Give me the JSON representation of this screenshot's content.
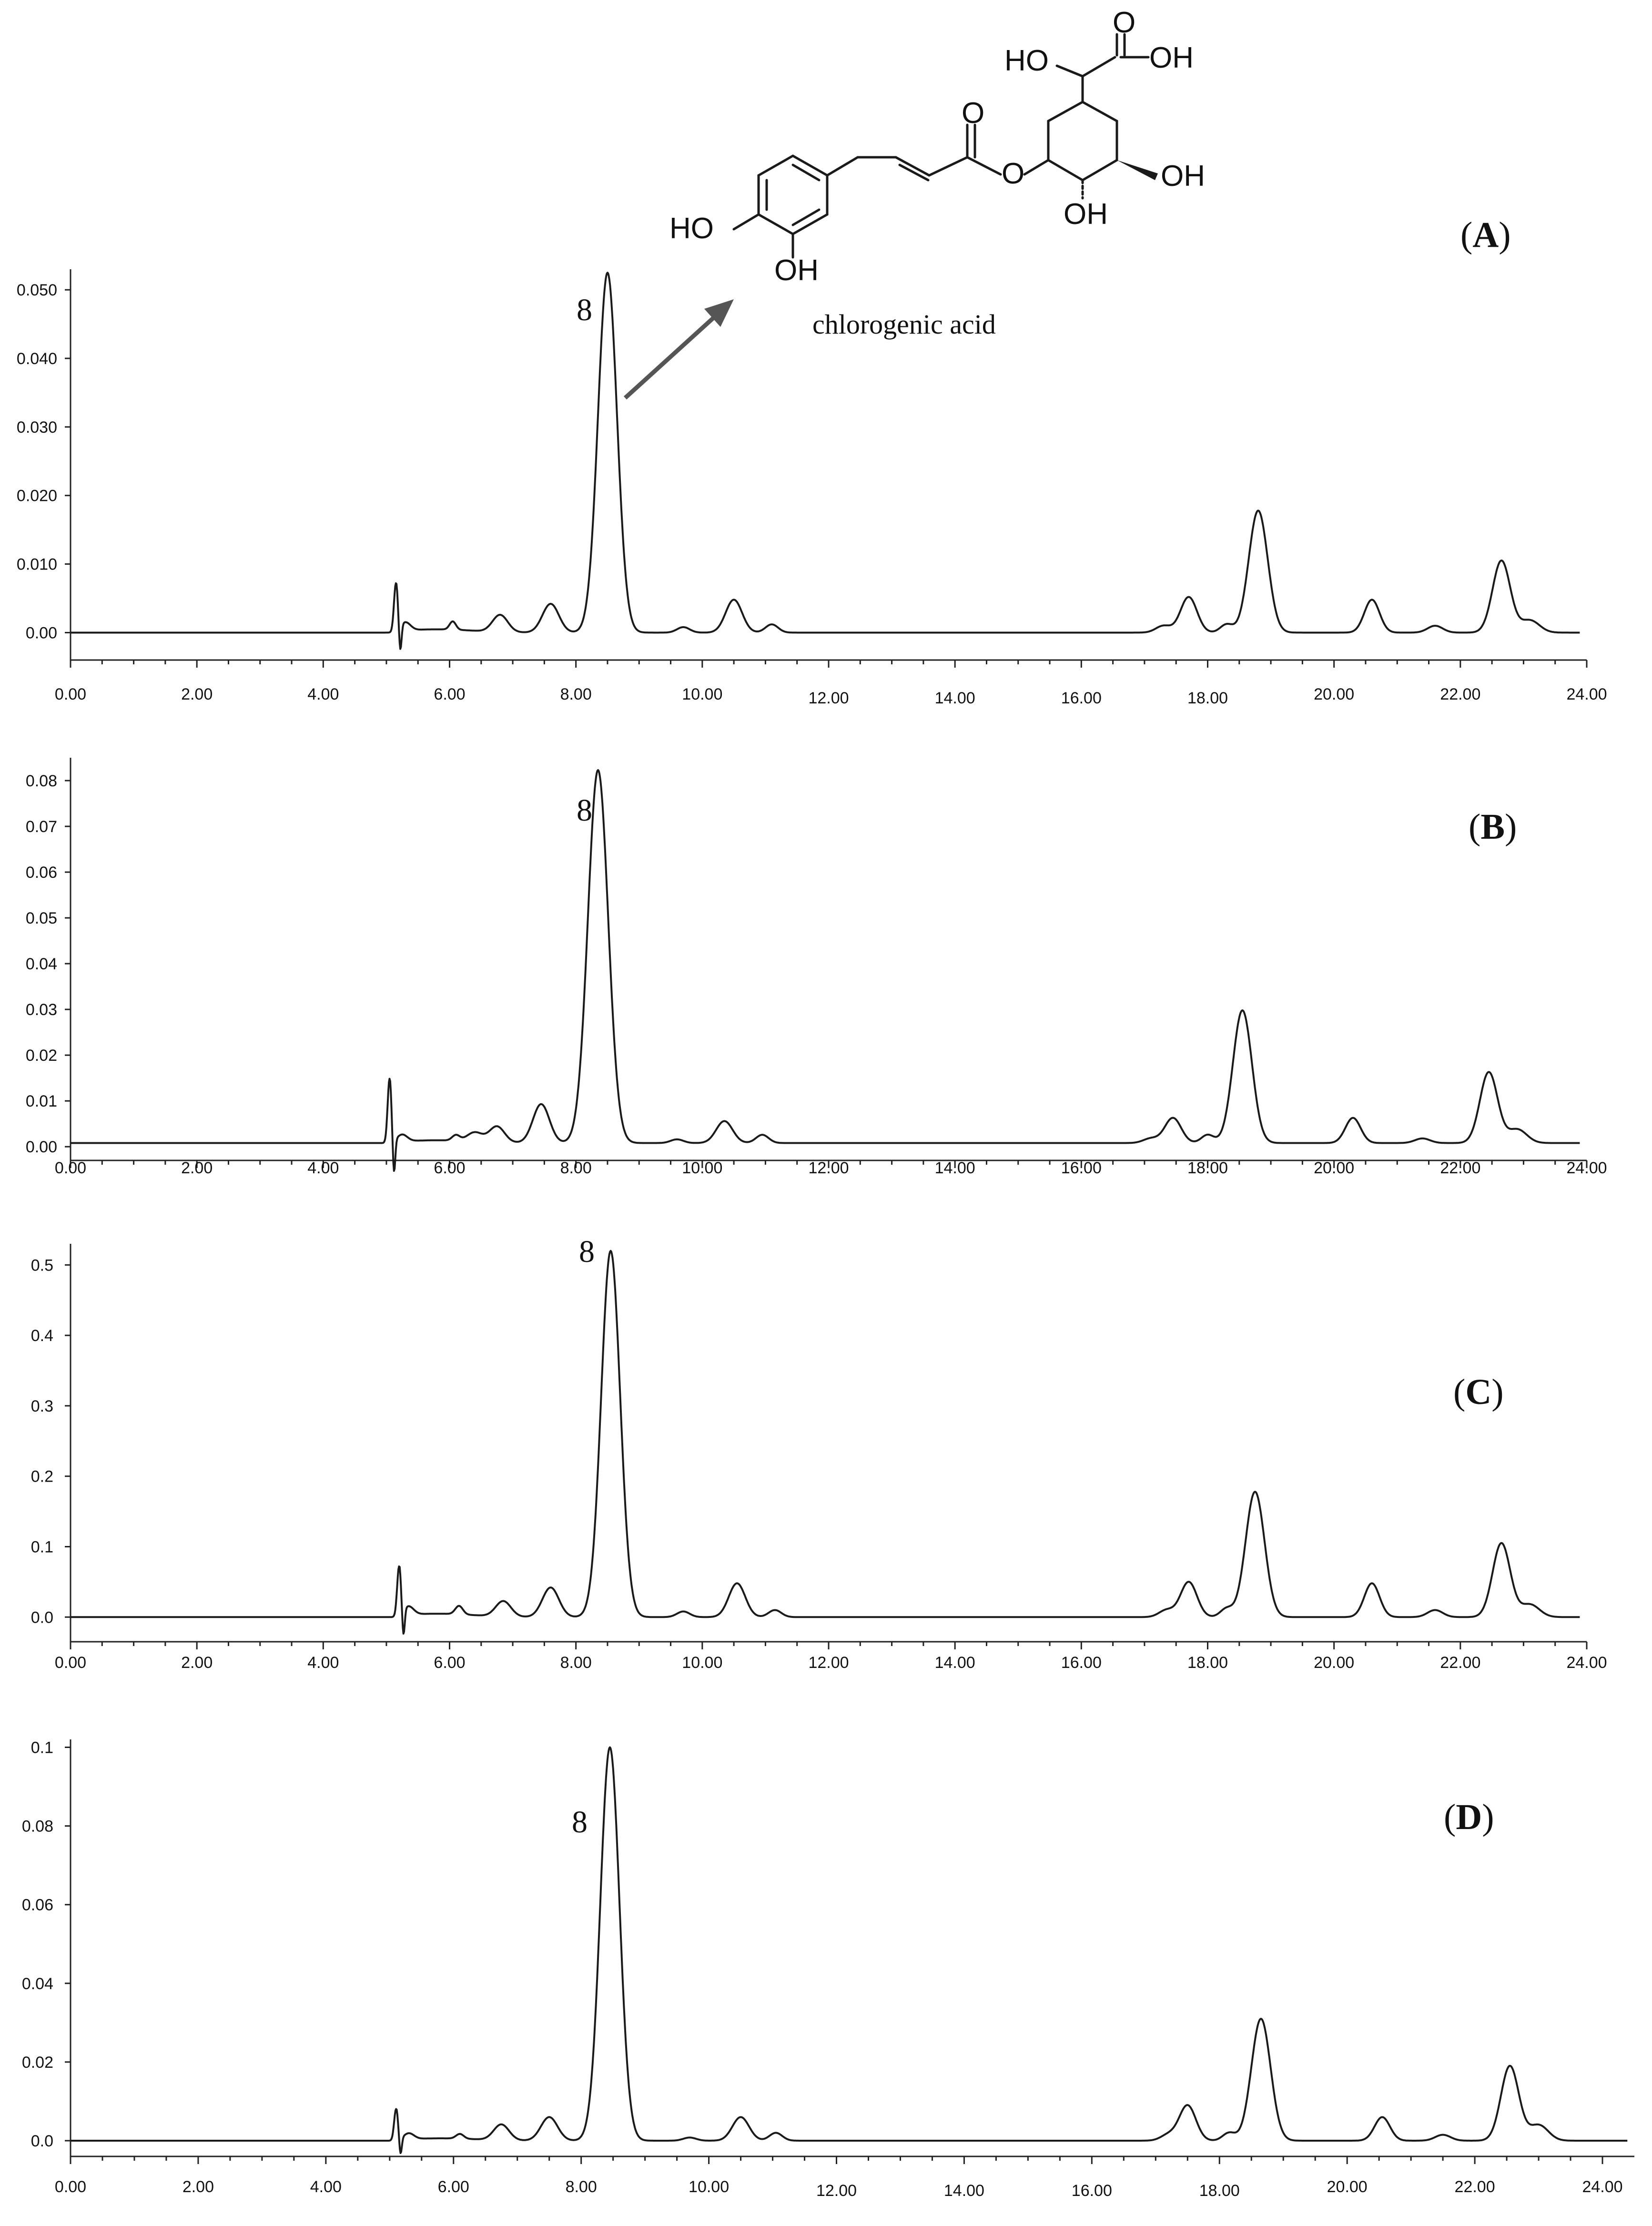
{
  "chart_data": [
    {
      "type": "line",
      "panel_label": "A",
      "xlabel": "",
      "ylabel": "",
      "xlim": [
        0,
        24
      ],
      "ylim": [
        -0.004,
        0.053
      ],
      "x_ticks": [
        "0.00",
        "2.00",
        "4.00",
        "6.00",
        "8.00",
        "10.00",
        "12.00",
        "14.00",
        "16.00",
        "18.00",
        "20.00",
        "22.00",
        "24.00"
      ],
      "y_ticks": [
        {
          "value": 0,
          "label": "0.00"
        },
        {
          "value": 0.01,
          "label": "0.010"
        },
        {
          "value": 0.02,
          "label": "0.020"
        },
        {
          "value": 0.03,
          "label": "0.030"
        },
        {
          "value": 0.04,
          "label": "0.040"
        },
        {
          "value": 0.05,
          "label": "0.050"
        }
      ],
      "baseline": 0,
      "peaks": [
        {
          "rt": 5.15,
          "height": 0.007,
          "width": 0.03
        },
        {
          "rt": 5.3,
          "height": 0.0012,
          "width": 0.08
        },
        {
          "rt": 6.05,
          "height": 0.0012,
          "width": 0.05
        },
        {
          "rt": 6.8,
          "height": 0.0025,
          "width": 0.12
        },
        {
          "rt": 7.6,
          "height": 0.0042,
          "width": 0.13
        },
        {
          "rt": 8.5,
          "height": 0.0525,
          "width": 0.15
        },
        {
          "rt": 9.7,
          "height": 0.0008,
          "width": 0.1
        },
        {
          "rt": 10.5,
          "height": 0.0048,
          "width": 0.13
        },
        {
          "rt": 11.1,
          "height": 0.0012,
          "width": 0.1
        },
        {
          "rt": 17.3,
          "height": 0.001,
          "width": 0.12
        },
        {
          "rt": 17.7,
          "height": 0.0052,
          "width": 0.13
        },
        {
          "rt": 18.3,
          "height": 0.0012,
          "width": 0.1
        },
        {
          "rt": 18.8,
          "height": 0.0178,
          "width": 0.15
        },
        {
          "rt": 20.6,
          "height": 0.0048,
          "width": 0.12
        },
        {
          "rt": 21.6,
          "height": 0.001,
          "width": 0.12
        },
        {
          "rt": 22.65,
          "height": 0.0105,
          "width": 0.14
        },
        {
          "rt": 23.1,
          "height": 0.0018,
          "width": 0.15
        }
      ],
      "peak_annotations": [
        {
          "rt": 8.5,
          "label": "8"
        }
      ],
      "compound_label": "chlorogenic acid"
    },
    {
      "type": "line",
      "panel_label": "B",
      "xlabel": "",
      "ylabel": "",
      "xlim": [
        0,
        24
      ],
      "ylim": [
        -0.003,
        0.085
      ],
      "x_ticks": [
        "0.00",
        "2.00",
        "4.00",
        "6.00",
        "8.00",
        "10.00",
        "12.00",
        "14.00",
        "16.00",
        "18.00",
        "20.00",
        "22.00",
        "24.00"
      ],
      "y_ticks": [
        {
          "value": 0,
          "label": "0.00"
        },
        {
          "value": 0.01,
          "label": "0.01"
        },
        {
          "value": 0.02,
          "label": "0.02"
        },
        {
          "value": 0.03,
          "label": "0.03"
        },
        {
          "value": 0.04,
          "label": "0.04"
        },
        {
          "value": 0.05,
          "label": "0.05"
        },
        {
          "value": 0.06,
          "label": "0.06"
        },
        {
          "value": 0.07,
          "label": "0.07"
        },
        {
          "value": 0.08,
          "label": "0.08"
        }
      ],
      "baseline": 0.0008,
      "peaks": [
        {
          "rt": 5.05,
          "height": 0.014,
          "width": 0.03
        },
        {
          "rt": 5.25,
          "height": 0.0015,
          "width": 0.08
        },
        {
          "rt": 6.1,
          "height": 0.0012,
          "width": 0.06
        },
        {
          "rt": 6.4,
          "height": 0.002,
          "width": 0.12
        },
        {
          "rt": 6.75,
          "height": 0.0035,
          "width": 0.12
        },
        {
          "rt": 7.45,
          "height": 0.0085,
          "width": 0.13
        },
        {
          "rt": 8.35,
          "height": 0.0815,
          "width": 0.16
        },
        {
          "rt": 9.6,
          "height": 0.0008,
          "width": 0.1
        },
        {
          "rt": 10.35,
          "height": 0.0048,
          "width": 0.13
        },
        {
          "rt": 10.95,
          "height": 0.0018,
          "width": 0.1
        },
        {
          "rt": 17.1,
          "height": 0.001,
          "width": 0.12
        },
        {
          "rt": 17.45,
          "height": 0.0055,
          "width": 0.13
        },
        {
          "rt": 18.0,
          "height": 0.0018,
          "width": 0.1
        },
        {
          "rt": 18.55,
          "height": 0.029,
          "width": 0.15
        },
        {
          "rt": 20.3,
          "height": 0.0055,
          "width": 0.12
        },
        {
          "rt": 21.4,
          "height": 0.001,
          "width": 0.12
        },
        {
          "rt": 22.45,
          "height": 0.0155,
          "width": 0.14
        },
        {
          "rt": 22.9,
          "height": 0.003,
          "width": 0.15
        }
      ],
      "peak_annotations": [
        {
          "rt": 8.35,
          "label": "8"
        }
      ]
    },
    {
      "type": "line",
      "panel_label": "C",
      "xlabel": "",
      "ylabel": "",
      "xlim": [
        0,
        24
      ],
      "ylim": [
        -0.035,
        0.53
      ],
      "x_ticks": [
        "0.00",
        "2.00",
        "4.00",
        "6.00",
        "8.00",
        "10.00",
        "12.00",
        "14.00",
        "16.00",
        "18.00",
        "20.00",
        "22.00",
        "24.00"
      ],
      "y_ticks": [
        {
          "value": 0,
          "label": "0.0"
        },
        {
          "value": 0.1,
          "label": "0.1"
        },
        {
          "value": 0.2,
          "label": "0.2"
        },
        {
          "value": 0.3,
          "label": "0.3"
        },
        {
          "value": 0.4,
          "label": "0.4"
        },
        {
          "value": 0.5,
          "label": "0.5"
        }
      ],
      "baseline": 0,
      "peaks": [
        {
          "rt": 5.2,
          "height": 0.07,
          "width": 0.03
        },
        {
          "rt": 5.35,
          "height": 0.012,
          "width": 0.08
        },
        {
          "rt": 6.15,
          "height": 0.012,
          "width": 0.06
        },
        {
          "rt": 6.85,
          "height": 0.022,
          "width": 0.12
        },
        {
          "rt": 7.6,
          "height": 0.042,
          "width": 0.13
        },
        {
          "rt": 8.55,
          "height": 0.52,
          "width": 0.15
        },
        {
          "rt": 9.7,
          "height": 0.008,
          "width": 0.1
        },
        {
          "rt": 10.55,
          "height": 0.048,
          "width": 0.13
        },
        {
          "rt": 11.15,
          "height": 0.01,
          "width": 0.1
        },
        {
          "rt": 17.35,
          "height": 0.01,
          "width": 0.12
        },
        {
          "rt": 17.7,
          "height": 0.05,
          "width": 0.13
        },
        {
          "rt": 18.3,
          "height": 0.012,
          "width": 0.1
        },
        {
          "rt": 18.75,
          "height": 0.178,
          "width": 0.15
        },
        {
          "rt": 20.6,
          "height": 0.048,
          "width": 0.12
        },
        {
          "rt": 21.6,
          "height": 0.01,
          "width": 0.12
        },
        {
          "rt": 22.65,
          "height": 0.105,
          "width": 0.14
        },
        {
          "rt": 23.1,
          "height": 0.018,
          "width": 0.15
        }
      ],
      "peak_annotations": [
        {
          "rt": 8.55,
          "label": "8"
        }
      ]
    },
    {
      "type": "line",
      "panel_label": "D",
      "xlabel": "",
      "ylabel": "",
      "xlim": [
        0,
        24.5
      ],
      "ylim": [
        -0.004,
        0.102
      ],
      "x_ticks": [
        "0.00",
        "2.00",
        "4.00",
        "6.00",
        "8.00",
        "10.00",
        "12.00",
        "14.00",
        "16.00",
        "18.00",
        "20.00",
        "22.00",
        "24.00"
      ],
      "y_ticks": [
        {
          "value": 0,
          "label": "0.0"
        },
        {
          "value": 0.02,
          "label": "0.02"
        },
        {
          "value": 0.04,
          "label": "0.04"
        },
        {
          "value": 0.06,
          "label": "0.06"
        },
        {
          "value": 0.08,
          "label": "0.08"
        },
        {
          "value": 0.1,
          "label": "0.1"
        }
      ],
      "baseline": 0,
      "peaks": [
        {
          "rt": 5.1,
          "height": 0.008,
          "width": 0.03
        },
        {
          "rt": 5.3,
          "height": 0.0015,
          "width": 0.08
        },
        {
          "rt": 6.1,
          "height": 0.0012,
          "width": 0.06
        },
        {
          "rt": 6.75,
          "height": 0.004,
          "width": 0.12
        },
        {
          "rt": 7.5,
          "height": 0.006,
          "width": 0.13
        },
        {
          "rt": 8.45,
          "height": 0.1,
          "width": 0.15
        },
        {
          "rt": 9.7,
          "height": 0.0008,
          "width": 0.1
        },
        {
          "rt": 10.5,
          "height": 0.006,
          "width": 0.13
        },
        {
          "rt": 11.05,
          "height": 0.002,
          "width": 0.1
        },
        {
          "rt": 17.2,
          "height": 0.0015,
          "width": 0.12
        },
        {
          "rt": 17.5,
          "height": 0.009,
          "width": 0.13
        },
        {
          "rt": 18.15,
          "height": 0.002,
          "width": 0.1
        },
        {
          "rt": 18.65,
          "height": 0.031,
          "width": 0.15
        },
        {
          "rt": 20.55,
          "height": 0.006,
          "width": 0.12
        },
        {
          "rt": 21.5,
          "height": 0.0015,
          "width": 0.12
        },
        {
          "rt": 22.55,
          "height": 0.019,
          "width": 0.14
        },
        {
          "rt": 23.0,
          "height": 0.004,
          "width": 0.15
        }
      ],
      "peak_annotations": [
        {
          "rt": 8.45,
          "label": "8"
        }
      ]
    }
  ],
  "structure": {
    "name": "chlorogenic acid",
    "labels": {
      "ho_ring": "HO",
      "oh_ring": "OH",
      "ho_quinic": "HO",
      "oh_acid": "OH",
      "oh_right": "OH",
      "oh_bottom": "OH",
      "ester_o": "O",
      "carbonyl_o": "O",
      "acid_o": "O"
    }
  }
}
